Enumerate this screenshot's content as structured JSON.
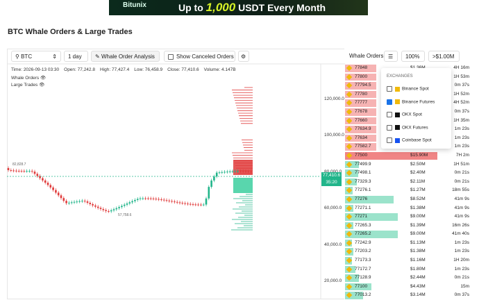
{
  "banner": {
    "brand": "Bitunix",
    "text_before": "Up to",
    "highlight": "1,000",
    "text_after": "USDT Every Month"
  },
  "title": "BTC Whale Orders & Large Trades",
  "toolbar": {
    "symbol": "BTC",
    "interval": "1 day",
    "analysis_button": "Whale Order Analysis",
    "canceled_checkbox": "Show Canceled Orders"
  },
  "chart": {
    "info": [
      "Time: 2026-09-13 03:30",
      "Open: 77,242.8",
      "High: 77,427.4",
      "Low: 76,458.9",
      "Close: 77,410.6",
      "Volume: 4.147B"
    ],
    "legend": [
      "Whale Orders",
      "Large Trades"
    ],
    "price_axis": [
      "120,000.0",
      "100,000.0",
      "80,000.0",
      "60,000.0",
      "40,000.0",
      "20,000.0"
    ],
    "last_price": "77,410.6",
    "countdown": "35:20",
    "high_label": "82,828.7",
    "low_label": "57,758.6"
  },
  "panel": {
    "mode": "Whale Orders",
    "depth": "100%",
    "min_size": ">$1.00M"
  },
  "exchanges": {
    "heading": "EXCHANGES",
    "items": [
      {
        "name": "Binance Spot",
        "checked": false
      },
      {
        "name": "Binance Futures",
        "checked": true
      },
      {
        "name": "OKX Spot",
        "checked": false
      },
      {
        "name": "OKX Futures",
        "checked": false
      },
      {
        "name": "Coinbase Spot",
        "checked": false
      }
    ]
  },
  "orders": [
    {
      "price": "77848",
      "amount": "$1.36M",
      "age": "4H 16m",
      "side": "ask"
    },
    {
      "price": "77800",
      "age": "1H 53m",
      "side": "ask"
    },
    {
      "price": "77794.5",
      "age": "0m 37s",
      "side": "ask"
    },
    {
      "price": "77780",
      "age": "1H 52m",
      "side": "ask"
    },
    {
      "price": "77777",
      "age": "4H 52m",
      "side": "ask"
    },
    {
      "price": "77678",
      "age": "0m 37s",
      "side": "ask"
    },
    {
      "price": "77660",
      "age": "1H 35m",
      "side": "ask"
    },
    {
      "price": "77634.9",
      "age": "1m 23s",
      "side": "ask"
    },
    {
      "price": "77634",
      "age": "1m 23s",
      "side": "ask"
    },
    {
      "price": "77582.7",
      "age": "1m 23s",
      "side": "ask"
    },
    {
      "price": "77500",
      "amount": "$15.90M",
      "age": "7H 2m",
      "side": "ask"
    },
    {
      "price": "77499.9",
      "amount": "$2.50M",
      "age": "1H 51m",
      "side": "bid"
    },
    {
      "price": "77498.1",
      "amount": "$2.40M",
      "age": "0m 21s",
      "side": "bid"
    },
    {
      "price": "77329.3",
      "amount": "$2.11M",
      "age": "0m 21s",
      "side": "bid"
    },
    {
      "price": "77276.1",
      "amount": "$1.27M",
      "age": "18m 55s",
      "side": "bid"
    },
    {
      "price": "77276",
      "amount": "$8.52M",
      "age": "41m 9s",
      "side": "bid"
    },
    {
      "price": "77271.1",
      "amount": "$1.38M",
      "age": "41m 9s",
      "side": "bid"
    },
    {
      "price": "77271",
      "amount": "$9.00M",
      "age": "41m 9s",
      "side": "bid"
    },
    {
      "price": "77265.3",
      "amount": "$1.39M",
      "age": "16m 26s",
      "side": "bid"
    },
    {
      "price": "77265.2",
      "amount": "$9.00M",
      "age": "41m 40s",
      "side": "bid"
    },
    {
      "price": "77242.9",
      "amount": "$1.13M",
      "age": "1m 23s",
      "side": "bid"
    },
    {
      "price": "77203.2",
      "amount": "$1.38M",
      "age": "1m 23s",
      "side": "bid"
    },
    {
      "price": "77173.3",
      "amount": "$1.16M",
      "age": "1H 20m",
      "side": "bid"
    },
    {
      "price": "77172.7",
      "amount": "$1.80M",
      "age": "1m 23s",
      "side": "bid"
    },
    {
      "price": "77128.9",
      "amount": "$2.44M",
      "age": "0m 21s",
      "side": "bid"
    },
    {
      "price": "77100",
      "amount": "$4.43M",
      "age": "15m",
      "side": "bid"
    },
    {
      "price": "77013.2",
      "amount": "$3.14M",
      "age": "0m 37s",
      "side": "bid"
    }
  ]
}
